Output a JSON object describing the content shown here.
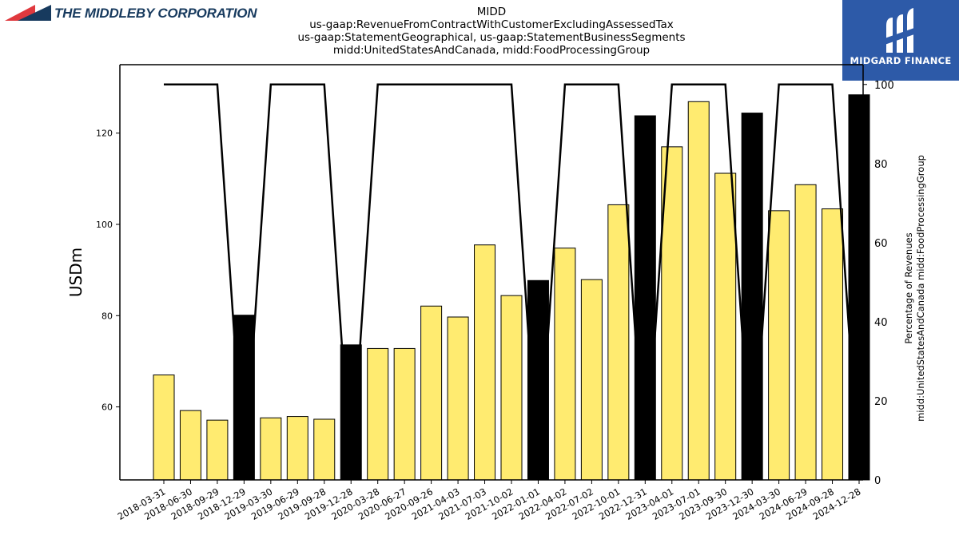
{
  "header": {
    "company_logo_text": "THE MIDDLEBY CORPORATION",
    "brand_logo_text": "MIDGARD FINANCE",
    "title_lines": [
      "MIDD",
      "us-gaap:RevenueFromContractWithCustomerExcludingAssessedTax",
      "us-gaap:StatementGeographical, us-gaap:StatementBusinessSegments",
      "midd:UnitedStatesAndCanada, midd:FoodProcessingGroup"
    ]
  },
  "colors": {
    "bar_regular": "#ffeb70",
    "bar_highlight": "#000000",
    "line": "#000000",
    "brand_blue": "#2d5aa8",
    "company_navy": "#173a5e",
    "company_red": "#e0393e"
  },
  "chart_data": {
    "type": "bar",
    "title": "MIDD",
    "ylabel": "USDm",
    "y2label_lines": [
      "Percentage of Revenues",
      "midd:UnitedStatesAndCanada midd:FoodProcessingGroup"
    ],
    "ylim": [
      44,
      135
    ],
    "y2lim": [
      0,
      105
    ],
    "yticks": [
      60,
      80,
      100,
      120
    ],
    "y2ticks": [
      0,
      20,
      40,
      60,
      80,
      100
    ],
    "grid": false,
    "categories": [
      "2018-03-31",
      "2018-06-30",
      "2018-09-29",
      "2018-12-29",
      "2019-03-30",
      "2019-06-29",
      "2019-09-28",
      "2019-12-28",
      "2020-03-28",
      "2020-06-27",
      "2020-09-26",
      "2021-04-03",
      "2021-07-03",
      "2021-10-02",
      "2022-01-01",
      "2022-04-02",
      "2022-07-02",
      "2022-10-01",
      "2022-12-31",
      "2023-04-01",
      "2023-07-01",
      "2023-09-30",
      "2023-12-30",
      "2024-03-30",
      "2024-06-29",
      "2024-09-28",
      "2024-12-28"
    ],
    "series": [
      {
        "kind": "bar",
        "values": [
          67.0,
          59.2,
          57.1,
          80.1,
          57.6,
          57.9,
          57.3,
          73.6,
          72.8,
          72.8,
          82.1,
          79.7,
          95.5,
          84.4,
          87.7,
          94.8,
          87.9,
          104.3,
          123.8,
          117.0,
          126.9,
          111.2,
          124.4,
          103.0,
          108.7,
          103.4,
          128.4
        ],
        "highlight": [
          false,
          false,
          false,
          true,
          false,
          false,
          false,
          true,
          false,
          false,
          false,
          false,
          false,
          false,
          true,
          false,
          false,
          false,
          true,
          false,
          false,
          false,
          true,
          false,
          false,
          false,
          true
        ]
      },
      {
        "kind": "line",
        "axis": "right",
        "values": [
          100,
          100,
          100,
          0,
          100,
          100,
          100,
          0,
          100,
          100,
          100,
          100,
          100,
          100,
          0,
          100,
          100,
          100,
          0,
          100,
          100,
          100,
          0,
          100,
          100,
          100,
          0
        ]
      }
    ]
  }
}
